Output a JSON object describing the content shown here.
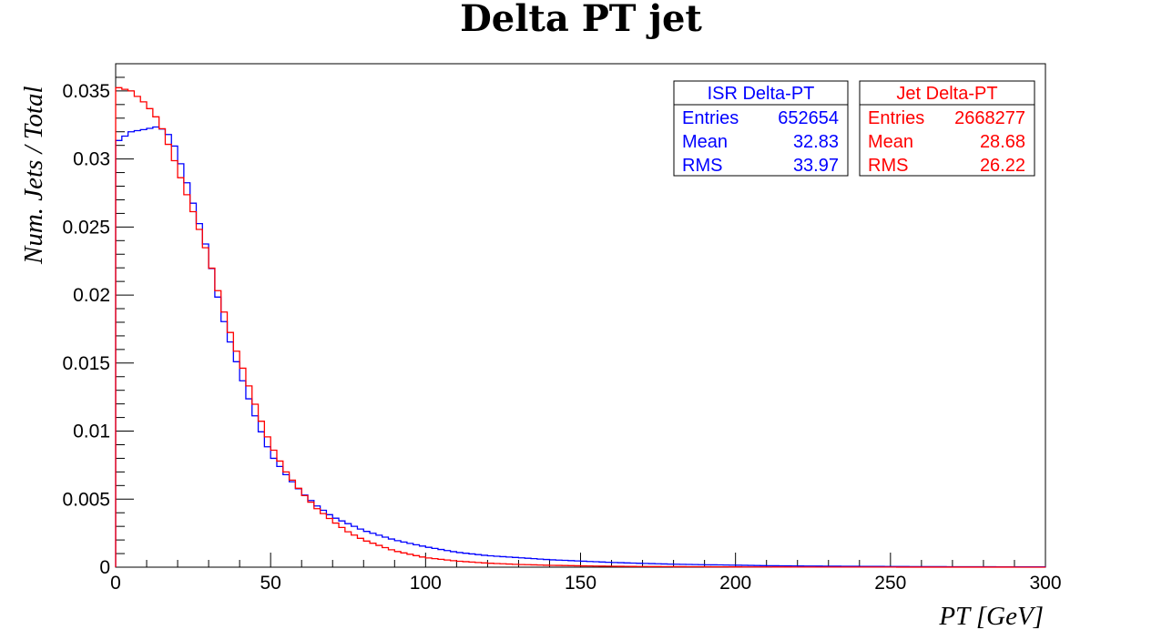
{
  "chart_data": {
    "type": "line",
    "title": "Delta PT jet",
    "xlabel": "PT [GeV]",
    "ylabel": "Num. Jets / Total",
    "xlim": [
      0,
      300
    ],
    "ylim": [
      0,
      0.037
    ],
    "x_ticks": [
      "0",
      "50",
      "100",
      "150",
      "200",
      "250",
      "300"
    ],
    "y_ticks": [
      "0",
      "0.005",
      "0.01",
      "0.015",
      "0.02",
      "0.025",
      "0.03",
      "0.035"
    ],
    "y_tick_values": [
      0,
      0.005,
      0.01,
      0.015,
      0.02,
      0.025,
      0.03,
      0.035
    ],
    "x_tick_values": [
      0,
      50,
      100,
      150,
      200,
      250,
      300
    ],
    "grid": false,
    "legend": "top-right",
    "bin_width": 2,
    "series": [
      {
        "name": "ISR Delta-PT",
        "color": "#0000ff",
        "stats": {
          "entries_label": "Entries",
          "entries": "652654",
          "mean_label": "Mean",
          "mean": "32.83",
          "rms_label": "RMS",
          "rms": "33.97"
        },
        "x": [
          0,
          5,
          10,
          14,
          18,
          22,
          26,
          30,
          34,
          38,
          42,
          46,
          50,
          55,
          60,
          65,
          70,
          75,
          80,
          90,
          100,
          110,
          120,
          130,
          140,
          150,
          160,
          170,
          180,
          190,
          200,
          210,
          220,
          240,
          260,
          280,
          300
        ],
        "values": [
          0.0312,
          0.032,
          0.0322,
          0.0324,
          0.0316,
          0.029,
          0.026,
          0.023,
          0.0188,
          0.0158,
          0.013,
          0.0105,
          0.0083,
          0.0068,
          0.0055,
          0.0045,
          0.0037,
          0.0032,
          0.0027,
          0.002,
          0.0015,
          0.0011,
          0.00085,
          0.0007,
          0.00055,
          0.00045,
          0.00035,
          0.00028,
          0.00022,
          0.00018,
          0.00015,
          0.00011,
          9e-05,
          6e-05,
          4e-05,
          3e-05,
          2e-05
        ]
      },
      {
        "name": "Jet Delta-PT",
        "color": "#ff0000",
        "stats": {
          "entries_label": "Entries",
          "entries": "2668277",
          "mean_label": "Mean",
          "mean": "28.68",
          "rms_label": "RMS",
          "rms": "26.22"
        },
        "x": [
          0,
          5,
          10,
          14,
          18,
          22,
          26,
          30,
          34,
          38,
          42,
          46,
          50,
          55,
          60,
          65,
          70,
          75,
          80,
          90,
          100,
          110,
          120,
          130,
          140,
          150,
          160,
          170,
          180,
          190,
          200,
          210,
          220,
          240,
          260,
          280,
          300
        ],
        "values": [
          0.0353,
          0.035,
          0.034,
          0.0328,
          0.0305,
          0.028,
          0.0255,
          0.0228,
          0.0195,
          0.0165,
          0.014,
          0.0113,
          0.009,
          0.007,
          0.0055,
          0.0043,
          0.0034,
          0.0026,
          0.002,
          0.0012,
          0.0007,
          0.00045,
          0.0003,
          0.0002,
          0.00014,
          0.0001,
          7e-05,
          5e-05,
          4e-05,
          3e-05,
          2e-05,
          1.5e-05,
          1e-05,
          7e-06,
          5e-06,
          3e-06,
          2e-06
        ]
      }
    ]
  }
}
